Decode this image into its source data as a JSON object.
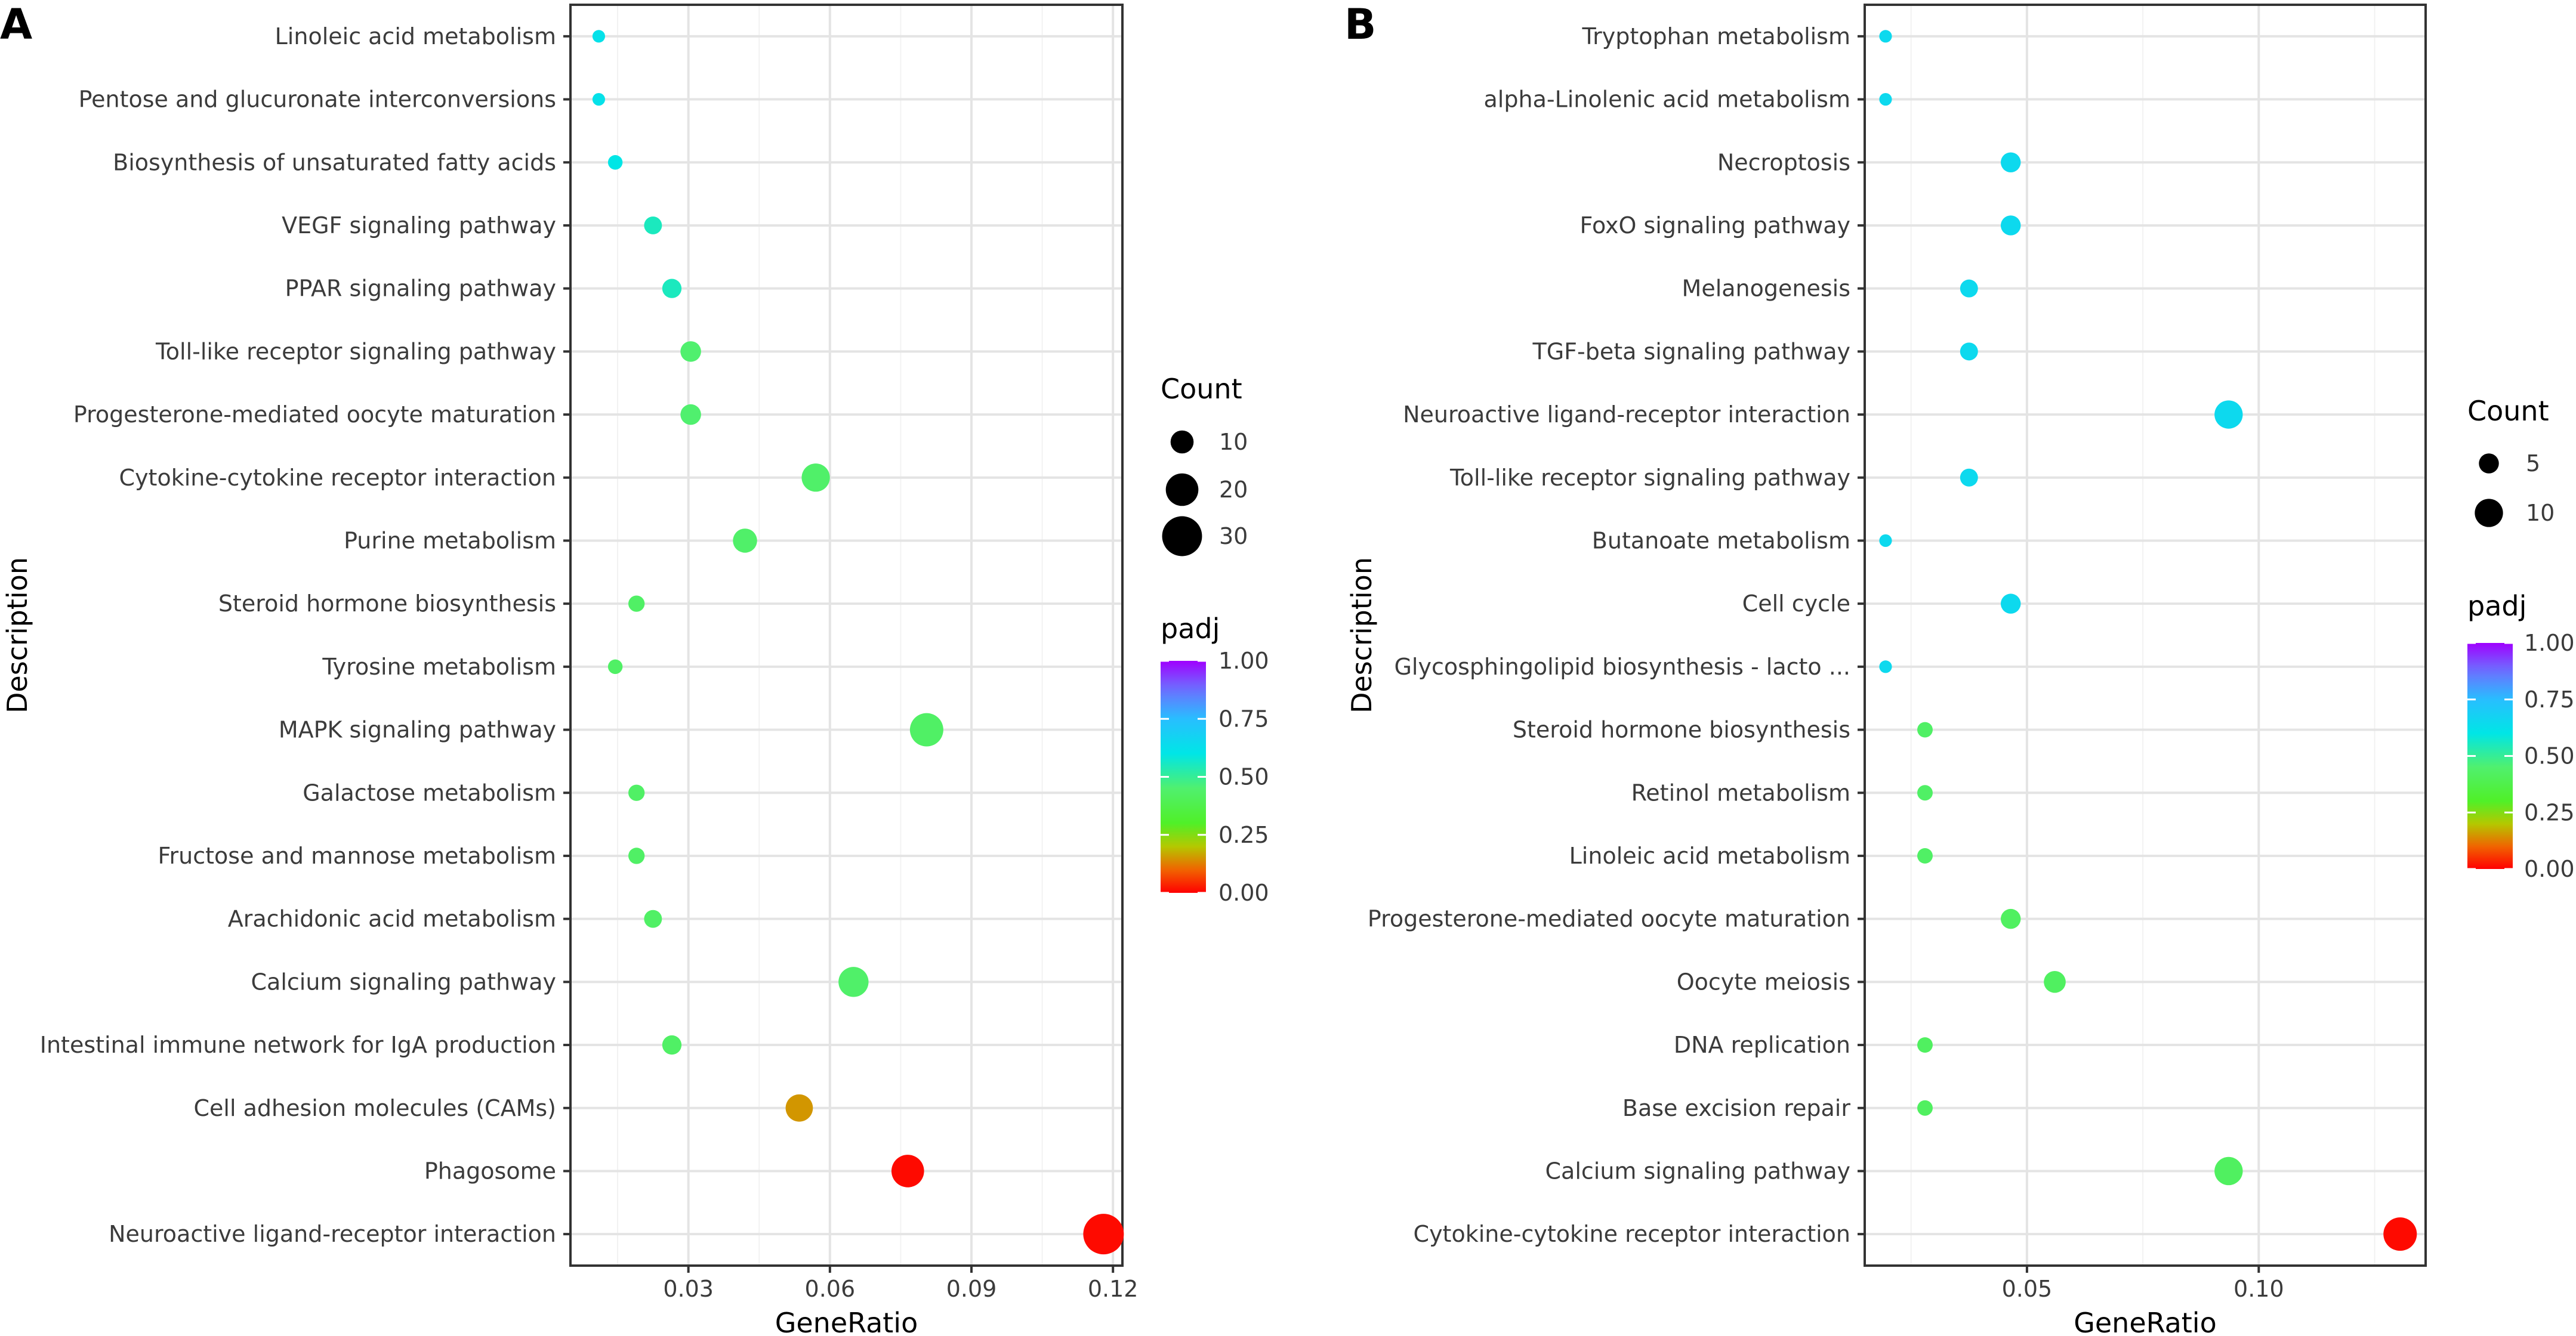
{
  "chart_data": [
    {
      "panel_label": "A",
      "type": "scatter",
      "xlabel": "GeneRatio",
      "ylabel": "Description",
      "xlim": [
        0.005,
        0.122
      ],
      "xticks": [
        0.03,
        0.06,
        0.09,
        0.12
      ],
      "xtick_labels": [
        "0.03",
        "0.06",
        "0.09",
        "0.12"
      ],
      "grid": true,
      "categories": [
        "Linoleic acid metabolism",
        "Pentose and glucuronate interconversions",
        "Biosynthesis of unsaturated fatty acids",
        "VEGF signaling pathway",
        "PPAR signaling pathway",
        "Toll-like receptor signaling pathway",
        "Progesterone-mediated oocyte maturation",
        "Cytokine-cytokine receptor interaction",
        "Purine metabolism",
        "Steroid hormone biosynthesis",
        "Tyrosine metabolism",
        "MAPK signaling pathway",
        "Galactose metabolism",
        "Fructose and mannose metabolism",
        "Arachidonic acid metabolism",
        "Calcium signaling pathway",
        "Intestinal immune network for IgA production",
        "Cell adhesion molecules (CAMs)",
        "Phagosome",
        "Neuroactive ligand-receptor interaction"
      ],
      "gene_ratio": [
        0.011,
        0.011,
        0.0145,
        0.0225,
        0.0265,
        0.0305,
        0.0305,
        0.057,
        0.042,
        0.019,
        0.0145,
        0.0805,
        0.019,
        0.019,
        0.0225,
        0.065,
        0.0265,
        0.0535,
        0.0765,
        0.118
      ],
      "count": [
        3,
        3,
        4,
        6,
        7,
        8,
        8,
        15,
        11,
        5,
        4,
        21,
        5,
        5,
        6,
        17,
        7,
        14,
        20,
        31
      ],
      "padj": [
        0.62,
        0.62,
        0.6,
        0.55,
        0.55,
        0.45,
        0.45,
        0.44,
        0.44,
        0.43,
        0.43,
        0.43,
        0.43,
        0.43,
        0.43,
        0.44,
        0.43,
        0.15,
        0.01,
        0.01
      ],
      "legend": {
        "size_title": "Count",
        "size_values": [
          10,
          20,
          30
        ],
        "size_labels": [
          "10",
          "20",
          "30"
        ],
        "color_title": "padj",
        "color_values": [
          1.0,
          0.75,
          0.5,
          0.25,
          0.0
        ],
        "color_labels": [
          "1.00",
          "0.75",
          "0.50",
          "0.25",
          "0.00"
        ]
      }
    },
    {
      "panel_label": "B",
      "type": "scatter",
      "xlabel": "GeneRatio",
      "ylabel": "Description",
      "xlim": [
        0.015,
        0.136
      ],
      "xticks": [
        0.05,
        0.1
      ],
      "xtick_labels": [
        "0.05",
        "0.10"
      ],
      "grid": true,
      "categories": [
        "Tryptophan metabolism",
        "alpha-Linolenic acid metabolism",
        "Necroptosis",
        "FoxO signaling pathway",
        "Melanogenesis",
        "TGF-beta signaling pathway",
        "Neuroactive ligand-receptor interaction",
        "Toll-like receptor signaling pathway",
        "Butanoate metabolism",
        "Cell cycle",
        "Glycosphingolipid biosynthesis - lacto ...",
        "Steroid hormone biosynthesis",
        "Retinol metabolism",
        "Linoleic acid metabolism",
        "Progesterone-mediated oocyte maturation",
        "Oocyte meiosis",
        "DNA replication",
        "Base excision repair",
        "Calcium signaling pathway",
        "Cytokine-cytokine receptor interaction"
      ],
      "gene_ratio": [
        0.0195,
        0.0195,
        0.0465,
        0.0465,
        0.0375,
        0.0375,
        0.0935,
        0.0375,
        0.0195,
        0.0465,
        0.0195,
        0.028,
        0.028,
        0.028,
        0.0465,
        0.056,
        0.028,
        0.028,
        0.0935,
        0.1305
      ],
      "count": [
        2,
        2,
        5,
        5,
        4,
        4,
        10,
        4,
        2,
        5,
        2,
        3,
        3,
        3,
        5,
        6,
        3,
        3,
        10,
        14
      ],
      "padj": [
        0.65,
        0.65,
        0.65,
        0.65,
        0.65,
        0.65,
        0.65,
        0.65,
        0.65,
        0.65,
        0.65,
        0.43,
        0.43,
        0.43,
        0.42,
        0.42,
        0.42,
        0.42,
        0.42,
        0.01
      ],
      "legend": {
        "size_title": "Count",
        "size_values": [
          5,
          10
        ],
        "size_labels": [
          "5",
          "10"
        ],
        "color_title": "padj",
        "color_values": [
          1.0,
          0.75,
          0.5,
          0.25,
          0.0
        ],
        "color_labels": [
          "1.00",
          "0.75",
          "0.50",
          "0.25",
          "0.00"
        ]
      }
    }
  ]
}
